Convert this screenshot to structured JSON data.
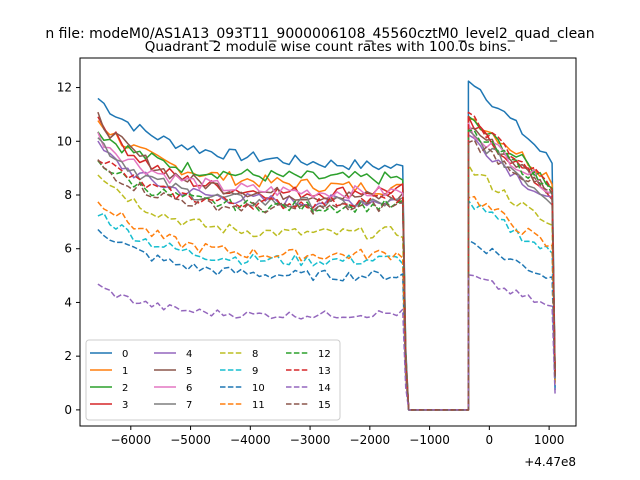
{
  "suptitle": "n file: modeM0/AS1A13_093T11_9000006108_45560cztM0_level2_quad_clean",
  "chart_data": {
    "type": "line",
    "title": "Quadrant 2 module wise count rates with 100.0s bins.",
    "xlabel": "",
    "ylabel": "",
    "x_offset_label": "+4.47e8",
    "xlim": [
      -6850,
      1450
    ],
    "ylim": [
      -0.6,
      13.1
    ],
    "xticks": [
      -6000,
      -5000,
      -4000,
      -3000,
      -2000,
      -1000,
      0,
      1000
    ],
    "xtick_labels": [
      "−6000",
      "−5000",
      "−4000",
      "−3000",
      "−2000",
      "−1000",
      "0",
      "1000"
    ],
    "yticks": [
      0,
      2,
      4,
      6,
      8,
      10,
      12
    ],
    "ytick_labels": [
      "0",
      "2",
      "4",
      "6",
      "8",
      "10",
      "12"
    ],
    "grid": false,
    "legend": {
      "placement": "lower-left",
      "columns": 4
    },
    "time_segments": [
      {
        "start": -6550,
        "end": -1450,
        "step": 100
      },
      {
        "start": -1450,
        "end": -350,
        "step": 100
      },
      {
        "start": -350,
        "end": 1050,
        "step": 100
      }
    ],
    "series": [
      {
        "name": "0",
        "color": "#1f77b4",
        "dash": "solid",
        "start": 11.6,
        "plateau": 9.3,
        "end": 9.0,
        "after_peak": 12.4,
        "after_end": 9.2,
        "noise": 0.22
      },
      {
        "name": "1",
        "color": "#ff7f0e",
        "dash": "solid",
        "start": 10.8,
        "plateau": 8.4,
        "end": 8.2,
        "after_peak": 11.0,
        "after_end": 8.6,
        "noise": 0.25
      },
      {
        "name": "2",
        "color": "#2ca02c",
        "dash": "solid",
        "start": 10.4,
        "plateau": 8.6,
        "end": 8.6,
        "after_peak": 10.8,
        "after_end": 8.4,
        "noise": 0.25
      },
      {
        "name": "3",
        "color": "#d62728",
        "dash": "solid",
        "start": 10.9,
        "plateau": 7.8,
        "end": 8.2,
        "after_peak": 10.7,
        "after_end": 8.0,
        "noise": 0.25
      },
      {
        "name": "4",
        "color": "#9467bd",
        "dash": "solid",
        "start": 9.8,
        "plateau": 7.6,
        "end": 7.8,
        "after_peak": 10.2,
        "after_end": 7.7,
        "noise": 0.25
      },
      {
        "name": "5",
        "color": "#8c564b",
        "dash": "solid",
        "start": 10.9,
        "plateau": 7.9,
        "end": 7.9,
        "after_peak": 10.6,
        "after_end": 8.1,
        "noise": 0.25
      },
      {
        "name": "6",
        "color": "#e377c2",
        "dash": "solid",
        "start": 10.2,
        "plateau": 8.0,
        "end": 8.1,
        "after_peak": 10.5,
        "after_end": 8.2,
        "noise": 0.25
      },
      {
        "name": "7",
        "color": "#7f7f7f",
        "dash": "solid",
        "start": 10.1,
        "plateau": 7.5,
        "end": 7.7,
        "after_peak": 10.3,
        "after_end": 7.8,
        "noise": 0.25
      },
      {
        "name": "8",
        "color": "#bcbd22",
        "dash": "dashed",
        "start": 8.9,
        "plateau": 6.4,
        "end": 6.6,
        "after_peak": 9.0,
        "after_end": 6.8,
        "noise": 0.22
      },
      {
        "name": "9",
        "color": "#17becf",
        "dash": "dashed",
        "start": 7.4,
        "plateau": 5.4,
        "end": 5.6,
        "after_peak": 7.7,
        "after_end": 5.8,
        "noise": 0.22
      },
      {
        "name": "10",
        "color": "#1f77b4",
        "dash": "dashed",
        "start": 6.8,
        "plateau": 4.9,
        "end": 5.0,
        "after_peak": 6.3,
        "after_end": 4.9,
        "noise": 0.2
      },
      {
        "name": "11",
        "color": "#ff7f0e",
        "dash": "dashed",
        "start": 7.9,
        "plateau": 5.6,
        "end": 5.8,
        "after_peak": 8.0,
        "after_end": 6.0,
        "noise": 0.22
      },
      {
        "name": "12",
        "color": "#2ca02c",
        "dash": "dashed",
        "start": 9.3,
        "plateau": 7.4,
        "end": 7.6,
        "after_peak": 10.4,
        "after_end": 8.2,
        "noise": 0.22
      },
      {
        "name": "13",
        "color": "#d62728",
        "dash": "dashed",
        "start": 9.5,
        "plateau": 7.4,
        "end": 7.9,
        "after_peak": 10.9,
        "after_end": 8.3,
        "noise": 0.22
      },
      {
        "name": "14",
        "color": "#9467bd",
        "dash": "dashed",
        "start": 4.6,
        "plateau": 3.4,
        "end": 3.6,
        "after_peak": 5.0,
        "after_end": 3.8,
        "noise": 0.15
      },
      {
        "name": "15",
        "color": "#8c564b",
        "dash": "dashed",
        "start": 9.2,
        "plateau": 7.3,
        "end": 7.6,
        "after_peak": 10.1,
        "after_end": 8.0,
        "noise": 0.22
      }
    ]
  }
}
